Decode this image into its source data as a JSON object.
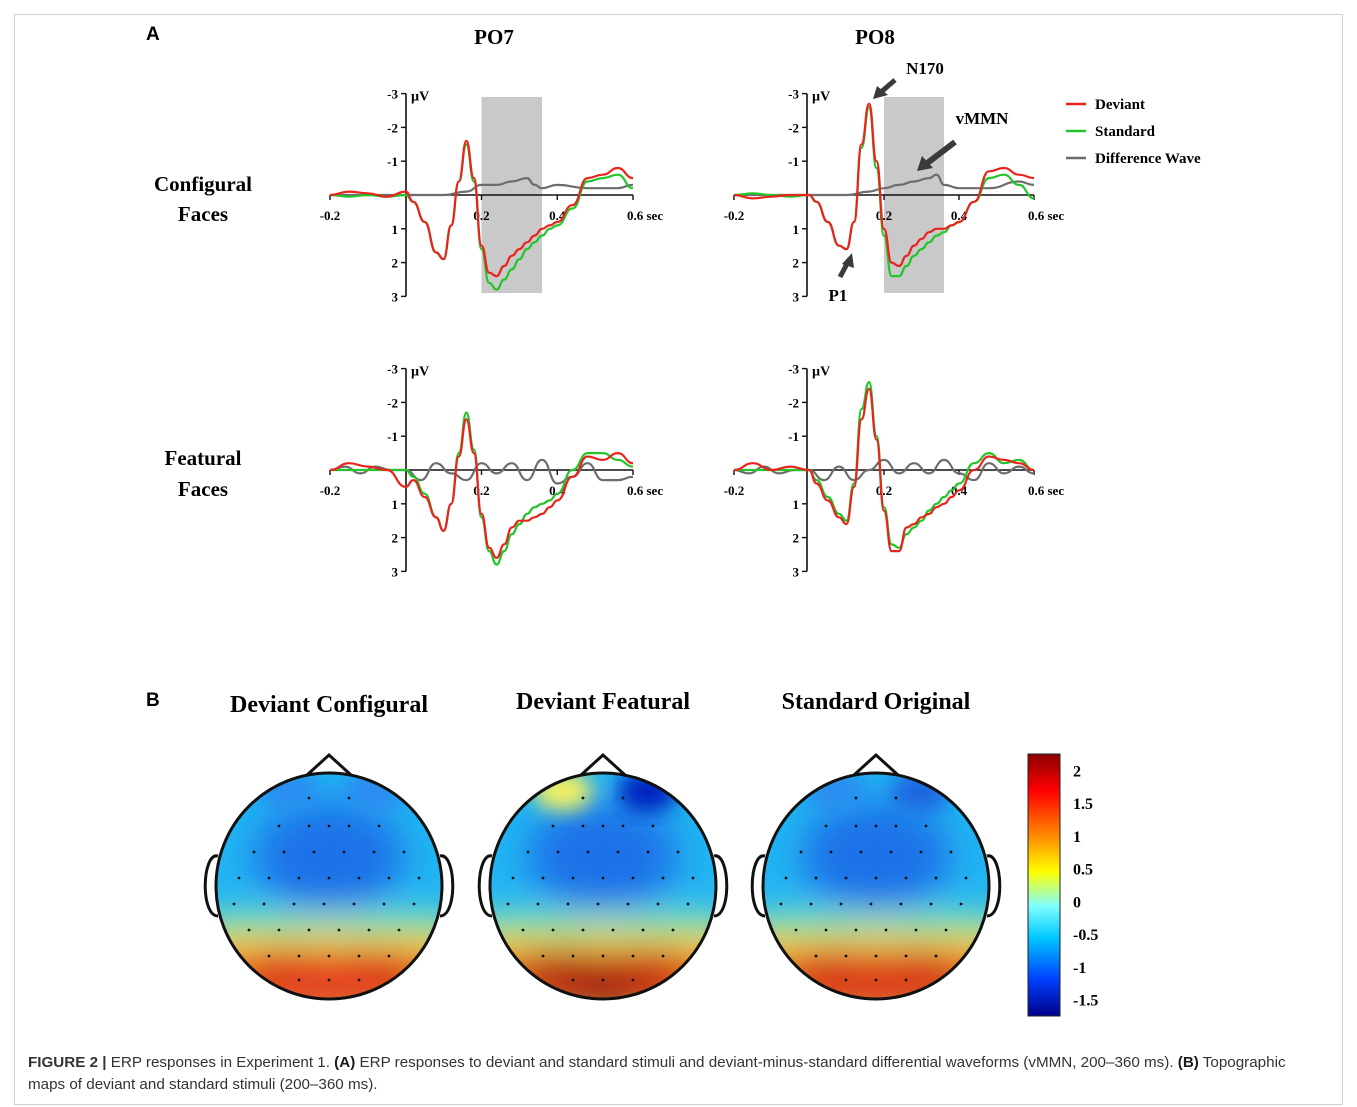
{
  "panel_labels": {
    "a": "A",
    "b": "B"
  },
  "panel_a": {
    "column_titles": [
      "PO7",
      "PO8"
    ],
    "row_labels": [
      [
        "Configural",
        "Faces"
      ],
      [
        "Featural",
        "Faces"
      ]
    ],
    "y_axis": {
      "unit": "µV",
      "ticks": [
        "-3",
        "-2",
        "-1",
        "1",
        "2",
        "3"
      ]
    },
    "x_axis": {
      "ticks": [
        "-0.2",
        "0.2",
        "0.4",
        "0.6 sec"
      ]
    },
    "legend": [
      {
        "label": "Deviant",
        "color": "#e8241d"
      },
      {
        "label": "Standard",
        "color": "#22c52a"
      },
      {
        "label": "Difference Wave",
        "color": "#6d6d6d"
      }
    ],
    "annotations": {
      "n170": "N170",
      "vmmn": "vMMN",
      "p1": "P1"
    },
    "shaded_window_color": "#c9c9c9"
  },
  "chart_data": [
    {
      "type": "line",
      "title": "PO7",
      "row": "Configural Faces",
      "xlabel": "sec",
      "ylabel": "µV",
      "xlim": [
        -0.2,
        0.6
      ],
      "ylim": [
        3,
        -3
      ],
      "shaded_window": [
        0.2,
        0.36
      ],
      "series": [
        {
          "name": "Deviant",
          "color": "#e8241d",
          "x": [
            -0.2,
            -0.15,
            -0.1,
            -0.05,
            0.0,
            0.02,
            0.05,
            0.08,
            0.1,
            0.12,
            0.14,
            0.16,
            0.18,
            0.2,
            0.22,
            0.24,
            0.26,
            0.28,
            0.3,
            0.32,
            0.34,
            0.36,
            0.38,
            0.4,
            0.44,
            0.48,
            0.52,
            0.56,
            0.6
          ],
          "y": [
            0.0,
            -0.1,
            -0.05,
            0.05,
            -0.1,
            0.2,
            0.8,
            1.7,
            1.9,
            0.9,
            -0.4,
            -1.6,
            -0.5,
            1.5,
            2.3,
            2.4,
            2.1,
            1.8,
            1.6,
            1.4,
            1.2,
            1.0,
            0.9,
            0.8,
            0.3,
            -0.5,
            -0.6,
            -0.8,
            -0.5
          ]
        },
        {
          "name": "Standard",
          "color": "#22c52a",
          "x": [
            -0.2,
            -0.15,
            -0.1,
            -0.05,
            0.0,
            0.02,
            0.05,
            0.08,
            0.1,
            0.12,
            0.14,
            0.16,
            0.18,
            0.2,
            0.22,
            0.24,
            0.26,
            0.28,
            0.3,
            0.32,
            0.34,
            0.36,
            0.38,
            0.4,
            0.44,
            0.48,
            0.52,
            0.56,
            0.6
          ],
          "y": [
            0.0,
            0.05,
            0.0,
            0.05,
            0.0,
            0.2,
            0.8,
            1.7,
            1.9,
            0.9,
            -0.4,
            -1.5,
            -0.4,
            1.6,
            2.6,
            2.8,
            2.5,
            2.2,
            1.9,
            1.6,
            1.4,
            1.2,
            1.0,
            0.9,
            0.4,
            -0.4,
            -0.5,
            -0.6,
            -0.2
          ]
        },
        {
          "name": "Difference Wave",
          "color": "#6d6d6d",
          "x": [
            -0.2,
            -0.1,
            0.0,
            0.1,
            0.16,
            0.2,
            0.24,
            0.28,
            0.32,
            0.34,
            0.36,
            0.4,
            0.48,
            0.56,
            0.6
          ],
          "y": [
            0.0,
            0.0,
            0.0,
            0.0,
            -0.1,
            -0.3,
            -0.3,
            -0.4,
            -0.5,
            -0.3,
            -0.2,
            -0.3,
            -0.2,
            -0.2,
            -0.3
          ]
        }
      ]
    },
    {
      "type": "line",
      "title": "PO8",
      "row": "Configural Faces",
      "xlabel": "sec",
      "ylabel": "µV",
      "xlim": [
        -0.2,
        0.6
      ],
      "ylim": [
        3,
        -3
      ],
      "shaded_window": [
        0.2,
        0.36
      ],
      "series": [
        {
          "name": "Deviant",
          "color": "#e8241d",
          "x": [
            -0.2,
            -0.15,
            -0.1,
            -0.05,
            0.0,
            0.02,
            0.05,
            0.08,
            0.1,
            0.12,
            0.14,
            0.16,
            0.18,
            0.2,
            0.22,
            0.24,
            0.26,
            0.28,
            0.3,
            0.32,
            0.34,
            0.36,
            0.38,
            0.4,
            0.44,
            0.48,
            0.52,
            0.56,
            0.6
          ],
          "y": [
            0.0,
            0.1,
            0.05,
            0.0,
            0.0,
            0.2,
            0.8,
            1.5,
            1.6,
            0.8,
            -1.5,
            -2.7,
            -1.0,
            1.0,
            2.0,
            2.1,
            1.8,
            1.5,
            1.3,
            1.1,
            1.0,
            1.0,
            0.9,
            0.8,
            0.2,
            -0.7,
            -0.8,
            -0.6,
            -0.5
          ]
        },
        {
          "name": "Standard",
          "color": "#22c52a",
          "x": [
            -0.2,
            -0.15,
            -0.1,
            -0.05,
            0.0,
            0.02,
            0.05,
            0.08,
            0.1,
            0.12,
            0.14,
            0.16,
            0.18,
            0.2,
            0.22,
            0.24,
            0.26,
            0.28,
            0.3,
            0.32,
            0.34,
            0.36,
            0.38,
            0.4,
            0.44,
            0.48,
            0.52,
            0.56,
            0.6
          ],
          "y": [
            0.0,
            -0.05,
            0.0,
            0.05,
            0.0,
            0.2,
            0.8,
            1.5,
            1.6,
            0.8,
            -1.4,
            -2.6,
            -0.8,
            1.2,
            2.4,
            2.4,
            2.1,
            1.8,
            1.6,
            1.4,
            1.2,
            1.1,
            0.9,
            0.8,
            0.2,
            -0.5,
            -0.6,
            -0.3,
            0.1
          ]
        },
        {
          "name": "Difference Wave",
          "color": "#6d6d6d",
          "x": [
            -0.2,
            -0.1,
            0.0,
            0.1,
            0.16,
            0.2,
            0.24,
            0.28,
            0.32,
            0.34,
            0.36,
            0.4,
            0.48,
            0.56,
            0.6
          ],
          "y": [
            0.0,
            0.0,
            0.0,
            0.0,
            -0.1,
            -0.2,
            -0.3,
            -0.4,
            -0.5,
            -0.6,
            -0.3,
            -0.2,
            -0.2,
            -0.4,
            -0.3
          ]
        }
      ]
    },
    {
      "type": "line",
      "title": "PO7",
      "row": "Featural Faces",
      "xlabel": "sec",
      "ylabel": "µV",
      "xlim": [
        -0.2,
        0.6
      ],
      "ylim": [
        3,
        -3
      ],
      "series": [
        {
          "name": "Deviant",
          "color": "#e8241d",
          "x": [
            -0.2,
            -0.15,
            -0.1,
            -0.05,
            0.0,
            0.02,
            0.05,
            0.08,
            0.1,
            0.12,
            0.14,
            0.16,
            0.18,
            0.2,
            0.22,
            0.24,
            0.26,
            0.28,
            0.3,
            0.32,
            0.34,
            0.36,
            0.38,
            0.4,
            0.44,
            0.48,
            0.52,
            0.56,
            0.6
          ],
          "y": [
            0.0,
            -0.2,
            -0.1,
            0.0,
            0.5,
            0.3,
            0.8,
            1.4,
            1.8,
            1.0,
            -0.4,
            -1.5,
            -0.5,
            1.3,
            2.3,
            2.6,
            2.2,
            1.7,
            1.5,
            1.5,
            1.4,
            1.3,
            1.1,
            0.9,
            0.2,
            -0.4,
            -0.3,
            -0.5,
            -0.2
          ]
        },
        {
          "name": "Standard",
          "color": "#22c52a",
          "x": [
            -0.2,
            -0.15,
            -0.1,
            -0.05,
            0.0,
            0.02,
            0.05,
            0.08,
            0.1,
            0.12,
            0.14,
            0.16,
            0.18,
            0.2,
            0.22,
            0.24,
            0.26,
            0.28,
            0.3,
            0.32,
            0.34,
            0.36,
            0.38,
            0.4,
            0.44,
            0.48,
            0.52,
            0.56,
            0.6
          ],
          "y": [
            0.0,
            0.0,
            0.0,
            0.0,
            0.0,
            0.2,
            0.7,
            1.4,
            1.8,
            1.0,
            -0.5,
            -1.7,
            -0.6,
            1.4,
            2.4,
            2.8,
            2.4,
            1.9,
            1.6,
            1.3,
            1.1,
            1.0,
            0.9,
            0.7,
            0.0,
            -0.5,
            -0.5,
            -0.3,
            -0.1
          ]
        },
        {
          "name": "Difference Wave",
          "color": "#6d6d6d",
          "x": [
            -0.2,
            -0.16,
            -0.12,
            -0.08,
            -0.04,
            0.0,
            0.04,
            0.08,
            0.12,
            0.16,
            0.2,
            0.24,
            0.28,
            0.32,
            0.36,
            0.4,
            0.44,
            0.48,
            0.52,
            0.56,
            0.6
          ],
          "y": [
            0.0,
            -0.1,
            0.1,
            -0.1,
            0.0,
            0.0,
            0.3,
            -0.2,
            0.1,
            0.3,
            -0.2,
            0.1,
            -0.2,
            0.3,
            -0.3,
            0.4,
            0.2,
            -0.2,
            0.3,
            0.3,
            0.2
          ]
        }
      ]
    },
    {
      "type": "line",
      "title": "PO8",
      "row": "Featural Faces",
      "xlabel": "sec",
      "ylabel": "µV",
      "xlim": [
        -0.2,
        0.6
      ],
      "ylim": [
        3,
        -3
      ],
      "series": [
        {
          "name": "Deviant",
          "color": "#e8241d",
          "x": [
            -0.2,
            -0.15,
            -0.1,
            -0.05,
            0.0,
            0.02,
            0.05,
            0.08,
            0.1,
            0.12,
            0.14,
            0.16,
            0.18,
            0.2,
            0.22,
            0.24,
            0.26,
            0.28,
            0.3,
            0.32,
            0.34,
            0.36,
            0.38,
            0.4,
            0.44,
            0.48,
            0.52,
            0.56,
            0.6
          ],
          "y": [
            0.0,
            -0.2,
            0.0,
            -0.1,
            0.0,
            0.4,
            0.9,
            1.4,
            1.6,
            0.5,
            -1.5,
            -2.4,
            -0.9,
            1.2,
            2.4,
            2.4,
            1.7,
            1.6,
            1.4,
            1.3,
            1.1,
            1.0,
            0.8,
            0.6,
            0.0,
            -0.4,
            -0.3,
            -0.2,
            0.0
          ]
        },
        {
          "name": "Standard",
          "color": "#22c52a",
          "x": [
            -0.2,
            -0.15,
            -0.1,
            -0.05,
            0.0,
            0.02,
            0.05,
            0.08,
            0.1,
            0.12,
            0.14,
            0.16,
            0.18,
            0.2,
            0.22,
            0.24,
            0.26,
            0.28,
            0.3,
            0.32,
            0.34,
            0.36,
            0.38,
            0.4,
            0.44,
            0.48,
            0.52,
            0.56,
            0.6
          ],
          "y": [
            0.0,
            0.0,
            0.0,
            0.0,
            0.0,
            0.3,
            0.8,
            1.3,
            1.5,
            0.4,
            -1.8,
            -2.6,
            -1.0,
            1.1,
            2.2,
            2.3,
            1.9,
            1.7,
            1.5,
            1.2,
            1.0,
            0.8,
            0.6,
            0.4,
            -0.2,
            -0.5,
            -0.2,
            -0.3,
            0.0
          ]
        },
        {
          "name": "Difference Wave",
          "color": "#6d6d6d",
          "x": [
            -0.2,
            -0.16,
            -0.12,
            -0.08,
            -0.04,
            0.0,
            0.04,
            0.08,
            0.12,
            0.16,
            0.2,
            0.24,
            0.28,
            0.32,
            0.36,
            0.4,
            0.44,
            0.48,
            0.52,
            0.56,
            0.6
          ],
          "y": [
            0.0,
            0.1,
            -0.1,
            0.1,
            0.0,
            0.0,
            0.3,
            -0.1,
            0.3,
            0.0,
            -0.3,
            0.1,
            -0.2,
            0.1,
            -0.3,
            0.1,
            0.3,
            -0.2,
            0.1,
            -0.1,
            0.1
          ]
        }
      ]
    },
    {
      "type": "heatmap",
      "subtype": "colorbar",
      "title": "",
      "colormap": [
        "#00008b",
        "#0040ff",
        "#00c8ff",
        "#80ffff",
        "#ffff00",
        "#ff8000",
        "#ff0000",
        "#8b0000"
      ],
      "ticks": [
        "2",
        "1.5",
        "1",
        "0.5",
        "0",
        "-0.5",
        "-1",
        "-1.5"
      ],
      "range": [
        -1.75,
        2.25
      ]
    }
  ],
  "panel_b": {
    "titles": [
      "Deviant Configural",
      "Deviant Featural",
      "Standard Original"
    ],
    "maps": [
      {
        "name": "Deviant Configural",
        "front_blob": "#2a8cf0",
        "front_blob2": "#2a8cf0",
        "back_left": "#d9261c",
        "back_right": "#d9261c",
        "back_center": "#e84120"
      },
      {
        "name": "Deviant Featural",
        "front_blob": "#f5f060",
        "front_blob2": "#0022c0",
        "back_left": "#b81414",
        "back_right": "#c81c18",
        "back_center": "#9a0c0c"
      },
      {
        "name": "Standard Original",
        "front_blob": "#2a8cf0",
        "front_blob2": "#1f66e0",
        "back_left": "#d2221a",
        "back_right": "#d2221a",
        "back_center": "#e03a1c"
      }
    ]
  },
  "caption": {
    "lead": "FIGURE 2 |",
    "text1": " ERP responses in  Experiment 1. ",
    "a_label": "(A)",
    "text2": " ERP responses to deviant and standard stimuli and deviant-minus-standard differential waveforms (vMMN, 200–360 ms). ",
    "b_label": "(B)",
    "text3": " Topographic maps of deviant and standard stimuli (200–360 ms)."
  }
}
